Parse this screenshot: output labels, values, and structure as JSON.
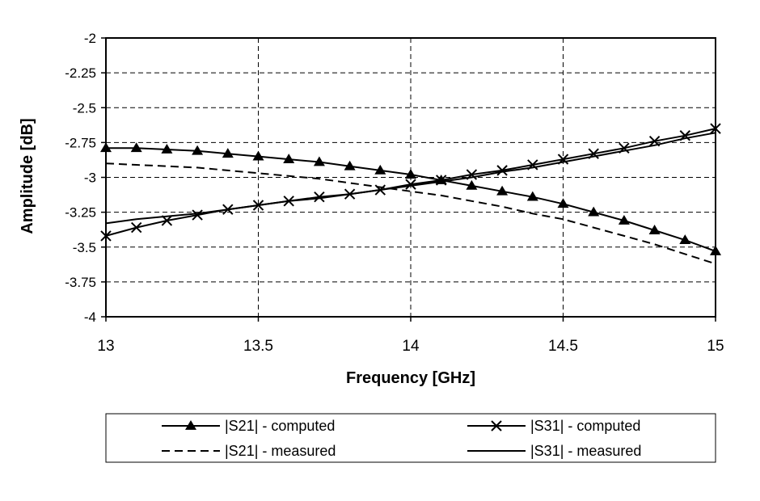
{
  "chart_data": {
    "type": "line",
    "title": "",
    "xlabel": "Frequency [GHz]",
    "ylabel": "Amplitude [dB]",
    "xlim": [
      13,
      15
    ],
    "ylim": [
      -4,
      -2
    ],
    "x_ticks": [
      "13",
      "13.5",
      "14",
      "14.5",
      "15"
    ],
    "y_ticks": [
      "-2",
      "-2.25",
      "-2.5",
      "-2.75",
      "-3",
      "-3.25",
      "-3.5",
      "-3.75",
      "-4"
    ],
    "grid": true,
    "legend_position": "bottom",
    "x": [
      13.0,
      13.1,
      13.2,
      13.3,
      13.4,
      13.5,
      13.6,
      13.7,
      13.8,
      13.9,
      14.0,
      14.1,
      14.2,
      14.3,
      14.4,
      14.5,
      14.6,
      14.7,
      14.8,
      14.9,
      15.0
    ],
    "series": [
      {
        "name": "|S21| - computed",
        "marker": "triangle",
        "dash": "solid",
        "values": [
          -2.79,
          -2.79,
          -2.8,
          -2.81,
          -2.83,
          -2.85,
          -2.87,
          -2.89,
          -2.92,
          -2.95,
          -2.98,
          -3.02,
          -3.06,
          -3.1,
          -3.14,
          -3.19,
          -3.25,
          -3.31,
          -3.38,
          -3.45,
          -3.53
        ]
      },
      {
        "name": "|S31| - computed",
        "marker": "cross",
        "dash": "solid",
        "values": [
          -3.42,
          -3.36,
          -3.31,
          -3.27,
          -3.23,
          -3.2,
          -3.17,
          -3.14,
          -3.12,
          -3.09,
          -3.05,
          -3.02,
          -2.98,
          -2.95,
          -2.91,
          -2.87,
          -2.83,
          -2.79,
          -2.74,
          -2.7,
          -2.65
        ]
      },
      {
        "name": "|S21| - measured",
        "marker": "none",
        "dash": "dashed",
        "values": [
          -2.9,
          -2.91,
          -2.92,
          -2.93,
          -2.95,
          -2.97,
          -2.99,
          -3.01,
          -3.04,
          -3.07,
          -3.1,
          -3.13,
          -3.17,
          -3.21,
          -3.26,
          -3.3,
          -3.36,
          -3.42,
          -3.48,
          -3.55,
          -3.62
        ]
      },
      {
        "name": "|S31| - measured",
        "marker": "none",
        "dash": "solid",
        "values": [
          -3.33,
          -3.3,
          -3.28,
          -3.26,
          -3.23,
          -3.2,
          -3.17,
          -3.15,
          -3.12,
          -3.09,
          -3.06,
          -3.03,
          -3.0,
          -2.96,
          -2.93,
          -2.89,
          -2.85,
          -2.81,
          -2.77,
          -2.72,
          -2.68
        ]
      }
    ]
  }
}
